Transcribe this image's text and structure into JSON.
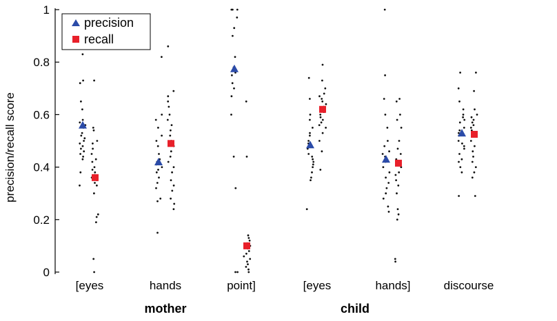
{
  "chart_data": {
    "type": "scatter",
    "ylabel": "precision/recall score",
    "ylim": [
      0,
      1
    ],
    "yticks": [
      0,
      0.2,
      0.4,
      0.6,
      0.8,
      1
    ],
    "ytick_labels": [
      "0",
      "0.2",
      "0.4",
      "0.6",
      "0.8",
      "1"
    ],
    "categories": [
      "[eyes",
      "hands",
      "point]",
      "[eyes",
      "hands]",
      "discourse"
    ],
    "groups": [
      {
        "label": "mother",
        "categories": [
          0,
          1,
          2
        ]
      },
      {
        "label": "child",
        "categories": [
          3,
          4
        ]
      }
    ],
    "legend": {
      "position": "top-left"
    },
    "series": [
      {
        "name": "precision",
        "marker": "triangle",
        "color": "#2b4ba8",
        "means": [
          0.56,
          0.42,
          0.775,
          0.485,
          0.43,
          0.53
        ],
        "points": [
          [
            0.83,
            0.73,
            0.72,
            0.65,
            0.62,
            0.58,
            0.57,
            0.56,
            0.55,
            0.53,
            0.52,
            0.51,
            0.5,
            0.49,
            0.48,
            0.47,
            0.46,
            0.45,
            0.44,
            0.43,
            0.38,
            0.33
          ],
          [
            0.82,
            0.6,
            0.58,
            0.55,
            0.52,
            0.5,
            0.48,
            0.45,
            0.43,
            0.42,
            0.41,
            0.4,
            0.39,
            0.38,
            0.36,
            0.34,
            0.32,
            0.28,
            0.27,
            0.15
          ],
          [
            1.0,
            1.0,
            1.0,
            0.97,
            0.93,
            0.9,
            0.82,
            0.78,
            0.77,
            0.76,
            0.75,
            0.72,
            0.7,
            0.67,
            0.6,
            0.44,
            0.32,
            0.0,
            0.0
          ],
          [
            0.74,
            0.66,
            0.6,
            0.58,
            0.55,
            0.53,
            0.52,
            0.5,
            0.49,
            0.48,
            0.47,
            0.45,
            0.44,
            0.43,
            0.42,
            0.41,
            0.4,
            0.38,
            0.36,
            0.35,
            0.24
          ],
          [
            1.0,
            0.75,
            0.66,
            0.6,
            0.55,
            0.5,
            0.48,
            0.46,
            0.45,
            0.44,
            0.43,
            0.42,
            0.4,
            0.38,
            0.36,
            0.34,
            0.32,
            0.3,
            0.28,
            0.25,
            0.23
          ],
          [
            0.76,
            0.7,
            0.65,
            0.62,
            0.6,
            0.59,
            0.58,
            0.57,
            0.55,
            0.54,
            0.53,
            0.52,
            0.5,
            0.49,
            0.48,
            0.47,
            0.45,
            0.43,
            0.42,
            0.4,
            0.38,
            0.29
          ]
        ]
      },
      {
        "name": "recall",
        "marker": "square",
        "color": "#e8202a",
        "means": [
          0.36,
          0.49,
          0.1,
          0.62,
          0.415,
          0.525
        ],
        "points": [
          [
            0.73,
            0.55,
            0.54,
            0.5,
            0.49,
            0.47,
            0.45,
            0.43,
            0.42,
            0.4,
            0.39,
            0.38,
            0.37,
            0.36,
            0.35,
            0.34,
            0.33,
            0.3,
            0.22,
            0.21,
            0.19,
            0.05,
            0.0
          ],
          [
            0.86,
            0.69,
            0.67,
            0.65,
            0.63,
            0.6,
            0.58,
            0.56,
            0.54,
            0.52,
            0.5,
            0.48,
            0.46,
            0.44,
            0.42,
            0.4,
            0.38,
            0.35,
            0.33,
            0.31,
            0.28,
            0.26,
            0.24
          ],
          [
            0.65,
            0.44,
            0.14,
            0.13,
            0.12,
            0.11,
            0.1,
            0.09,
            0.08,
            0.07,
            0.06,
            0.05,
            0.04,
            0.03,
            0.02,
            0.01,
            0.0
          ],
          [
            0.79,
            0.73,
            0.7,
            0.68,
            0.67,
            0.66,
            0.65,
            0.64,
            0.63,
            0.62,
            0.61,
            0.6,
            0.59,
            0.58,
            0.57,
            0.56,
            0.55,
            0.53,
            0.5,
            0.46,
            0.39
          ],
          [
            0.66,
            0.65,
            0.6,
            0.58,
            0.55,
            0.5,
            0.47,
            0.45,
            0.43,
            0.42,
            0.41,
            0.4,
            0.38,
            0.37,
            0.35,
            0.33,
            0.3,
            0.24,
            0.22,
            0.2,
            0.05,
            0.04
          ],
          [
            0.76,
            0.69,
            0.62,
            0.6,
            0.59,
            0.58,
            0.57,
            0.56,
            0.55,
            0.54,
            0.53,
            0.52,
            0.5,
            0.48,
            0.46,
            0.44,
            0.42,
            0.4,
            0.38,
            0.36,
            0.29
          ]
        ]
      }
    ]
  }
}
